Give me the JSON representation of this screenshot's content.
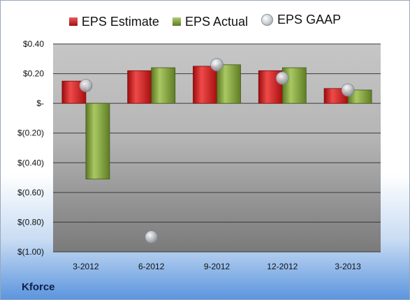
{
  "chart_data": {
    "type": "bar",
    "title": "",
    "xlabel": "",
    "ylabel": "",
    "categories": [
      "3-2012",
      "6-2012",
      "9-2012",
      "12-2012",
      "3-2013"
    ],
    "series": [
      {
        "name": "EPS Estimate",
        "kind": "bar",
        "color": "#d11a1a",
        "values": [
          0.15,
          0.22,
          0.25,
          0.22,
          0.1
        ]
      },
      {
        "name": "EPS Actual",
        "kind": "bar",
        "color": "#86a83c",
        "values": [
          -0.51,
          0.24,
          0.26,
          0.24,
          0.09
        ]
      },
      {
        "name": "EPS GAAP",
        "kind": "marker",
        "color": "#b8bcc2",
        "values": [
          0.12,
          -0.9,
          0.26,
          0.17,
          0.09
        ]
      }
    ],
    "ylim": [
      -1.0,
      0.4
    ],
    "yticks": [
      0.4,
      0.2,
      0,
      -0.2,
      -0.4,
      -0.6,
      -0.8,
      -1.0
    ],
    "ytick_labels": [
      "$0.40",
      "$0.20",
      "$-",
      "$(0.20)",
      "$(0.40)",
      "$(0.60)",
      "$(0.80)",
      "$(1.00)"
    ],
    "grid": true,
    "legend_position": "top"
  },
  "company": "Kforce"
}
